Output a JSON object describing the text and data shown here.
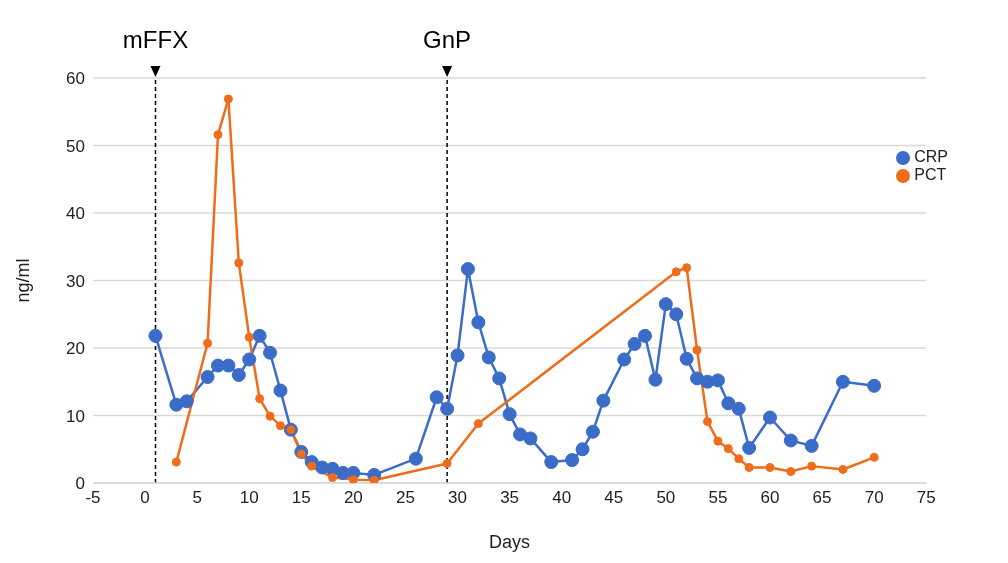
{
  "chart_data": {
    "type": "line",
    "xlabel": "Days",
    "ylabel": "ng/ml",
    "xlim": [
      -5,
      75
    ],
    "xticks": [
      -5,
      0,
      5,
      10,
      15,
      20,
      25,
      30,
      35,
      40,
      45,
      50,
      55,
      60,
      65,
      70,
      75
    ],
    "ylim": [
      0,
      60
    ],
    "yticks": [
      0,
      10,
      20,
      30,
      40,
      50,
      60
    ],
    "grid": "y",
    "legend": "right",
    "marker": "circle",
    "line_style": "solid",
    "ref_lines": [
      {
        "axis": "x",
        "value": 1,
        "label": "mFFX",
        "color": "#000000",
        "line_style": "dashed"
      },
      {
        "axis": "x",
        "value": 29,
        "label": "GnP",
        "color": "#000000",
        "line_style": "dashed"
      }
    ],
    "series": [
      {
        "name": "CRP",
        "color": "#3a6cc8",
        "x": [
          1,
          3,
          4,
          6,
          7,
          8,
          9,
          10,
          11,
          12,
          13,
          14,
          15,
          16,
          17,
          18,
          19,
          20,
          22,
          26,
          28,
          29,
          30,
          31,
          32,
          33,
          34,
          35,
          36,
          37,
          39,
          41,
          42,
          43,
          44,
          46,
          47,
          48,
          49,
          50,
          51,
          52,
          53,
          54,
          55,
          56,
          57,
          58,
          60,
          62,
          64,
          67,
          70
        ],
        "values": [
          21.8,
          11.6,
          12.1,
          15.7,
          17.4,
          17.4,
          16.0,
          18.3,
          21.8,
          19.3,
          13.7,
          7.9,
          4.6,
          3.1,
          2.3,
          2.1,
          1.5,
          1.5,
          1.2,
          3.6,
          12.7,
          11.0,
          18.9,
          31.7,
          23.8,
          18.6,
          15.5,
          10.2,
          7.2,
          6.6,
          3.1,
          3.4,
          5.0,
          7.6,
          12.2,
          18.3,
          20.6,
          21.8,
          15.3,
          26.5,
          25.0,
          18.4,
          15.5,
          15.0,
          15.2,
          11.8,
          11.0,
          5.2,
          9.7,
          6.3,
          5.5,
          15.0,
          14.4
        ]
      },
      {
        "name": "PCT",
        "color": "#ee6c1a",
        "x": [
          3,
          6,
          7,
          8,
          9,
          10,
          11,
          12,
          13,
          14,
          15,
          16,
          18,
          20,
          22,
          29,
          32,
          51,
          52,
          53,
          54,
          55,
          56,
          57,
          58,
          60,
          62,
          64,
          67,
          70
        ],
        "values": [
          3.1,
          20.7,
          51.6,
          56.9,
          32.6,
          21.6,
          12.5,
          9.9,
          8.5,
          7.9,
          4.3,
          2.5,
          0.8,
          0.5,
          0.4,
          2.9,
          8.8,
          31.3,
          31.9,
          19.7,
          9.1,
          6.2,
          5.1,
          3.6,
          2.3,
          2.3,
          1.7,
          2.5,
          2.0,
          3.8
        ]
      }
    ]
  }
}
